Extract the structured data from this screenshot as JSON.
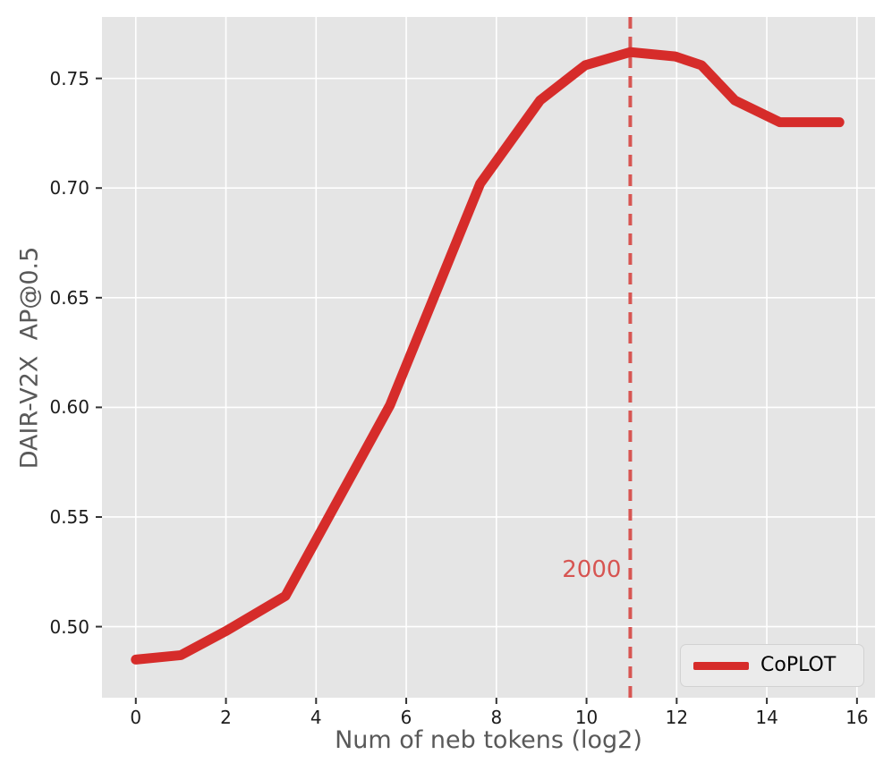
{
  "figure": {
    "background": "#ffffff",
    "plot_background": "#e5e5e5",
    "grid_color": "#ffffff",
    "tick_text_color": "#1c1c1c",
    "axis_label_color": "#595959"
  },
  "chart_data": {
    "type": "line",
    "title": "",
    "xlabel": "Num of neb tokens (log2)",
    "ylabel": "DAIR-V2X  AP@0.5",
    "xlim": [
      -0.75,
      16.4
    ],
    "ylim": [
      0.4676,
      0.778
    ],
    "grid": true,
    "x_tick_values": [
      0,
      2,
      4,
      6,
      8,
      10,
      12,
      14,
      16
    ],
    "x_tick_labels": [
      "0",
      "2",
      "4",
      "6",
      "8",
      "10",
      "12",
      "14",
      "16"
    ],
    "y_tick_values": [
      0.5,
      0.55,
      0.6,
      0.65,
      0.7,
      0.75
    ],
    "y_tick_labels": [
      "0.50",
      "0.55",
      "0.60",
      "0.65",
      "0.70",
      "0.75"
    ],
    "series": [
      {
        "name": "CoPLOT",
        "color": "#d62c2a",
        "line_width": 11,
        "x": [
          0,
          1,
          2,
          3.32,
          5.64,
          7.64,
          8.97,
          9.97,
          10.97,
          11.97,
          12.55,
          13.29,
          14.29,
          15.61
        ],
        "y": [
          0.485,
          0.487,
          0.498,
          0.514,
          0.601,
          0.702,
          0.74,
          0.756,
          0.762,
          0.76,
          0.756,
          0.74,
          0.73,
          0.73
        ]
      }
    ],
    "vline": {
      "x": 10.97,
      "label": "2000",
      "label_y": 0.526,
      "color": "#d75552",
      "style": "dashed"
    },
    "legend_position": "lower right"
  },
  "legend": {
    "label": "CoPLOT",
    "swatch_color": "#d62c2a"
  }
}
